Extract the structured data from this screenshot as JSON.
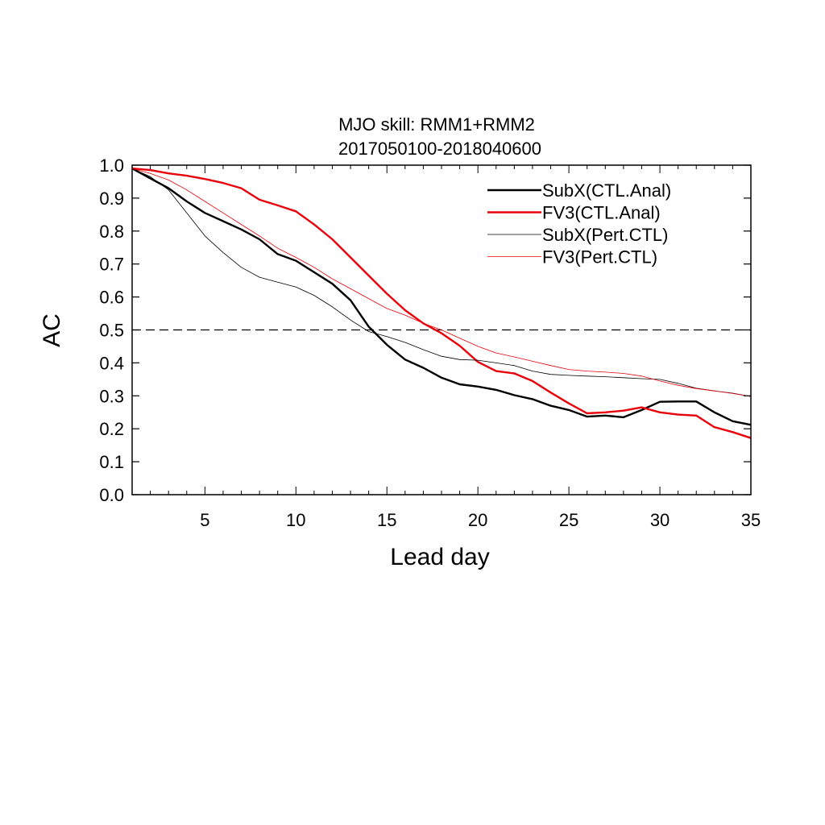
{
  "chart_data": {
    "type": "line",
    "title": "MJO skill: RMM1+RMM2",
    "subtitle": "2017050100-2018040600",
    "xlabel": "Lead day",
    "ylabel": "AC",
    "xlim": [
      1,
      35
    ],
    "ylim": [
      0.0,
      1.0
    ],
    "xticks": [
      5,
      10,
      15,
      20,
      25,
      30,
      35
    ],
    "xtick_labels": [
      "5",
      "10",
      "15",
      "20",
      "25",
      "30",
      "35"
    ],
    "yticks": [
      0.0,
      0.1,
      0.2,
      0.3,
      0.4,
      0.5,
      0.6,
      0.7,
      0.8,
      0.9,
      1.0
    ],
    "ytick_labels": [
      "0.0",
      "0.1",
      "0.2",
      "0.3",
      "0.4",
      "0.5",
      "0.6",
      "0.7",
      "0.8",
      "0.9",
      "1.0"
    ],
    "grid": false,
    "reference_line": {
      "y": 0.5,
      "style": "dashed",
      "color": "#000000"
    },
    "legend_position": "top-right",
    "x": [
      1,
      2,
      3,
      4,
      5,
      6,
      7,
      8,
      9,
      10,
      11,
      12,
      13,
      14,
      15,
      16,
      17,
      18,
      19,
      20,
      21,
      22,
      23,
      24,
      25,
      26,
      27,
      28,
      29,
      30,
      31,
      32,
      33,
      34,
      35
    ],
    "series": [
      {
        "name": "SubX(CTL.Anal)",
        "color": "#000000",
        "width": "thick",
        "values": [
          0.99,
          0.96,
          0.93,
          0.89,
          0.855,
          0.83,
          0.805,
          0.775,
          0.73,
          0.71,
          0.675,
          0.64,
          0.59,
          0.51,
          0.455,
          0.41,
          0.385,
          0.355,
          0.335,
          0.328,
          0.318,
          0.302,
          0.29,
          0.27,
          0.257,
          0.237,
          0.24,
          0.235,
          0.257,
          0.282,
          0.283,
          0.283,
          0.25,
          0.223,
          0.212
        ]
      },
      {
        "name": "FV3(CTL.Anal)",
        "color": "#e8000b",
        "width": "thick",
        "values": [
          0.99,
          0.985,
          0.975,
          0.968,
          0.958,
          0.946,
          0.93,
          0.895,
          0.878,
          0.86,
          0.82,
          0.775,
          0.72,
          0.665,
          0.61,
          0.56,
          0.52,
          0.49,
          0.452,
          0.403,
          0.375,
          0.368,
          0.345,
          0.31,
          0.277,
          0.247,
          0.25,
          0.255,
          0.265,
          0.25,
          0.243,
          0.24,
          0.205,
          0.19,
          0.172
        ]
      },
      {
        "name": "SubX(Pert.CTL)",
        "color": "#000000",
        "width": "thin",
        "values": [
          0.99,
          0.965,
          0.925,
          0.855,
          0.785,
          0.735,
          0.69,
          0.66,
          0.645,
          0.63,
          0.605,
          0.57,
          0.53,
          0.495,
          0.48,
          0.462,
          0.44,
          0.42,
          0.41,
          0.408,
          0.4,
          0.392,
          0.375,
          0.365,
          0.362,
          0.36,
          0.358,
          0.355,
          0.352,
          0.35,
          0.338,
          0.323,
          0.315,
          0.308,
          0.298
        ]
      },
      {
        "name": "FV3(Pert.CTL)",
        "color": "#e8000b",
        "width": "thin",
        "values": [
          0.99,
          0.975,
          0.955,
          0.925,
          0.89,
          0.855,
          0.82,
          0.785,
          0.748,
          0.72,
          0.69,
          0.655,
          0.625,
          0.595,
          0.565,
          0.545,
          0.52,
          0.5,
          0.475,
          0.45,
          0.43,
          0.418,
          0.405,
          0.392,
          0.38,
          0.375,
          0.372,
          0.368,
          0.36,
          0.345,
          0.332,
          0.322,
          0.315,
          0.307,
          0.298
        ]
      }
    ]
  }
}
